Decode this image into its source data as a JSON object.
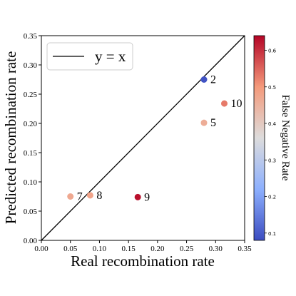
{
  "chart_data": {
    "type": "scatter",
    "title": "",
    "xlabel": "Real recombination rate",
    "ylabel": "Predicted recombination rate",
    "xlim": [
      0.0,
      0.35
    ],
    "ylim": [
      0.0,
      0.35
    ],
    "x_ticks": [
      "0.00",
      "0.05",
      "0.10",
      "0.15",
      "0.20",
      "0.25",
      "0.30",
      "0.35"
    ],
    "y_ticks": [
      "0.00",
      "0.05",
      "0.10",
      "0.15",
      "0.20",
      "0.25",
      "0.30",
      "0.35"
    ],
    "grid": false,
    "legend": {
      "position": "top-left",
      "entries": [
        {
          "label": "y = x",
          "color": "#000000",
          "style": "line"
        }
      ]
    },
    "reference_line": {
      "label": "y = x",
      "from": [
        0.0,
        0.0
      ],
      "to": [
        0.35,
        0.35
      ]
    },
    "colorbar": {
      "label": "False Negative Rate",
      "range": [
        0.08,
        0.64
      ],
      "ticks": [
        "0.1",
        "0.2",
        "0.3",
        "0.4",
        "0.5",
        "0.6"
      ],
      "colormap": "coolwarm"
    },
    "points": [
      {
        "label": "2",
        "x": 0.28,
        "y": 0.275,
        "fnr": 0.09
      },
      {
        "label": "10",
        "x": 0.315,
        "y": 0.234,
        "fnr": 0.53
      },
      {
        "label": "5",
        "x": 0.28,
        "y": 0.201,
        "fnr": 0.46
      },
      {
        "label": "7",
        "x": 0.05,
        "y": 0.075,
        "fnr": 0.47
      },
      {
        "label": "8",
        "x": 0.084,
        "y": 0.077,
        "fnr": 0.48
      },
      {
        "label": "9",
        "x": 0.166,
        "y": 0.074,
        "fnr": 0.63
      }
    ]
  }
}
